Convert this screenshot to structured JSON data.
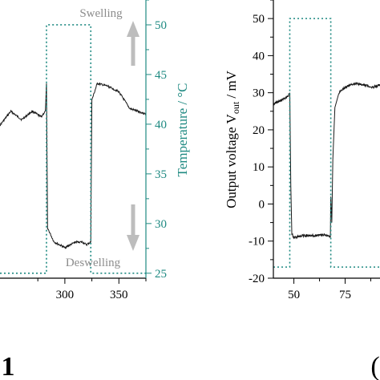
{
  "colors": {
    "data": "#1a1a1a",
    "temperature": "#1f8a82",
    "annotation": "#8c8c8c",
    "arrow": "#bdbdbd",
    "axis": "#000000"
  },
  "chart_data": [
    {
      "type": "line",
      "title": "",
      "xlabel": "",
      "ylabel": "",
      "y2label": "Temperature / °C",
      "xlim": [
        240,
        375
      ],
      "x_ticks": [
        300,
        350
      ],
      "y2lim": [
        24.5,
        52.5
      ],
      "y2_ticks": [
        25,
        30,
        35,
        40,
        45,
        50
      ],
      "annotations": [
        "Swelling",
        "Deswelling"
      ],
      "panel_label": "1",
      "series": [
        {
          "axis": "left",
          "x": [
            240,
            250,
            260,
            270,
            278,
            282,
            283,
            284,
            290,
            300,
            310,
            316,
            320,
            324,
            325,
            330,
            340,
            350,
            360,
            375
          ],
          "y": [
            0.55,
            0.6,
            0.57,
            0.6,
            0.58,
            0.6,
            0.7,
            0.18,
            0.13,
            0.11,
            0.13,
            0.13,
            0.12,
            0.13,
            0.64,
            0.7,
            0.69,
            0.67,
            0.61,
            0.59
          ]
        },
        {
          "axis": "right",
          "x": [
            240,
            283,
            283,
            324,
            324,
            375
          ],
          "y": [
            25,
            25,
            50,
            50,
            25,
            25
          ]
        }
      ]
    },
    {
      "type": "line",
      "title": "",
      "xlabel": "",
      "ylabel": "Output voltage V_out / mV",
      "ylabel_main": "Output voltage V",
      "ylabel_sub": "out",
      "ylabel_unit": " / mV",
      "xlim": [
        40,
        92
      ],
      "x_ticks": [
        50,
        75
      ],
      "ylim": [
        -20,
        55
      ],
      "y_ticks": [
        -20,
        -10,
        0,
        10,
        20,
        30,
        40,
        50
      ],
      "panel_label": "(",
      "series": [
        {
          "axis": "left",
          "x": [
            40,
            44,
            47,
            48,
            48.5,
            49,
            50,
            55,
            60,
            65,
            67,
            67.8,
            68,
            68.5,
            69,
            70,
            72,
            75,
            80,
            85,
            88,
            92
          ],
          "y": [
            27,
            28,
            29,
            30,
            5,
            -8,
            -9,
            -8.5,
            -8.5,
            -8.3,
            -8.5,
            -9,
            2,
            -5,
            12,
            26,
            30,
            31.5,
            32.5,
            32,
            31.5,
            32
          ]
        },
        {
          "axis": "left",
          "x": [
            40,
            48,
            48,
            68,
            68,
            92
          ],
          "y": [
            -17,
            -17,
            50,
            50,
            -17,
            -17
          ]
        }
      ]
    }
  ]
}
